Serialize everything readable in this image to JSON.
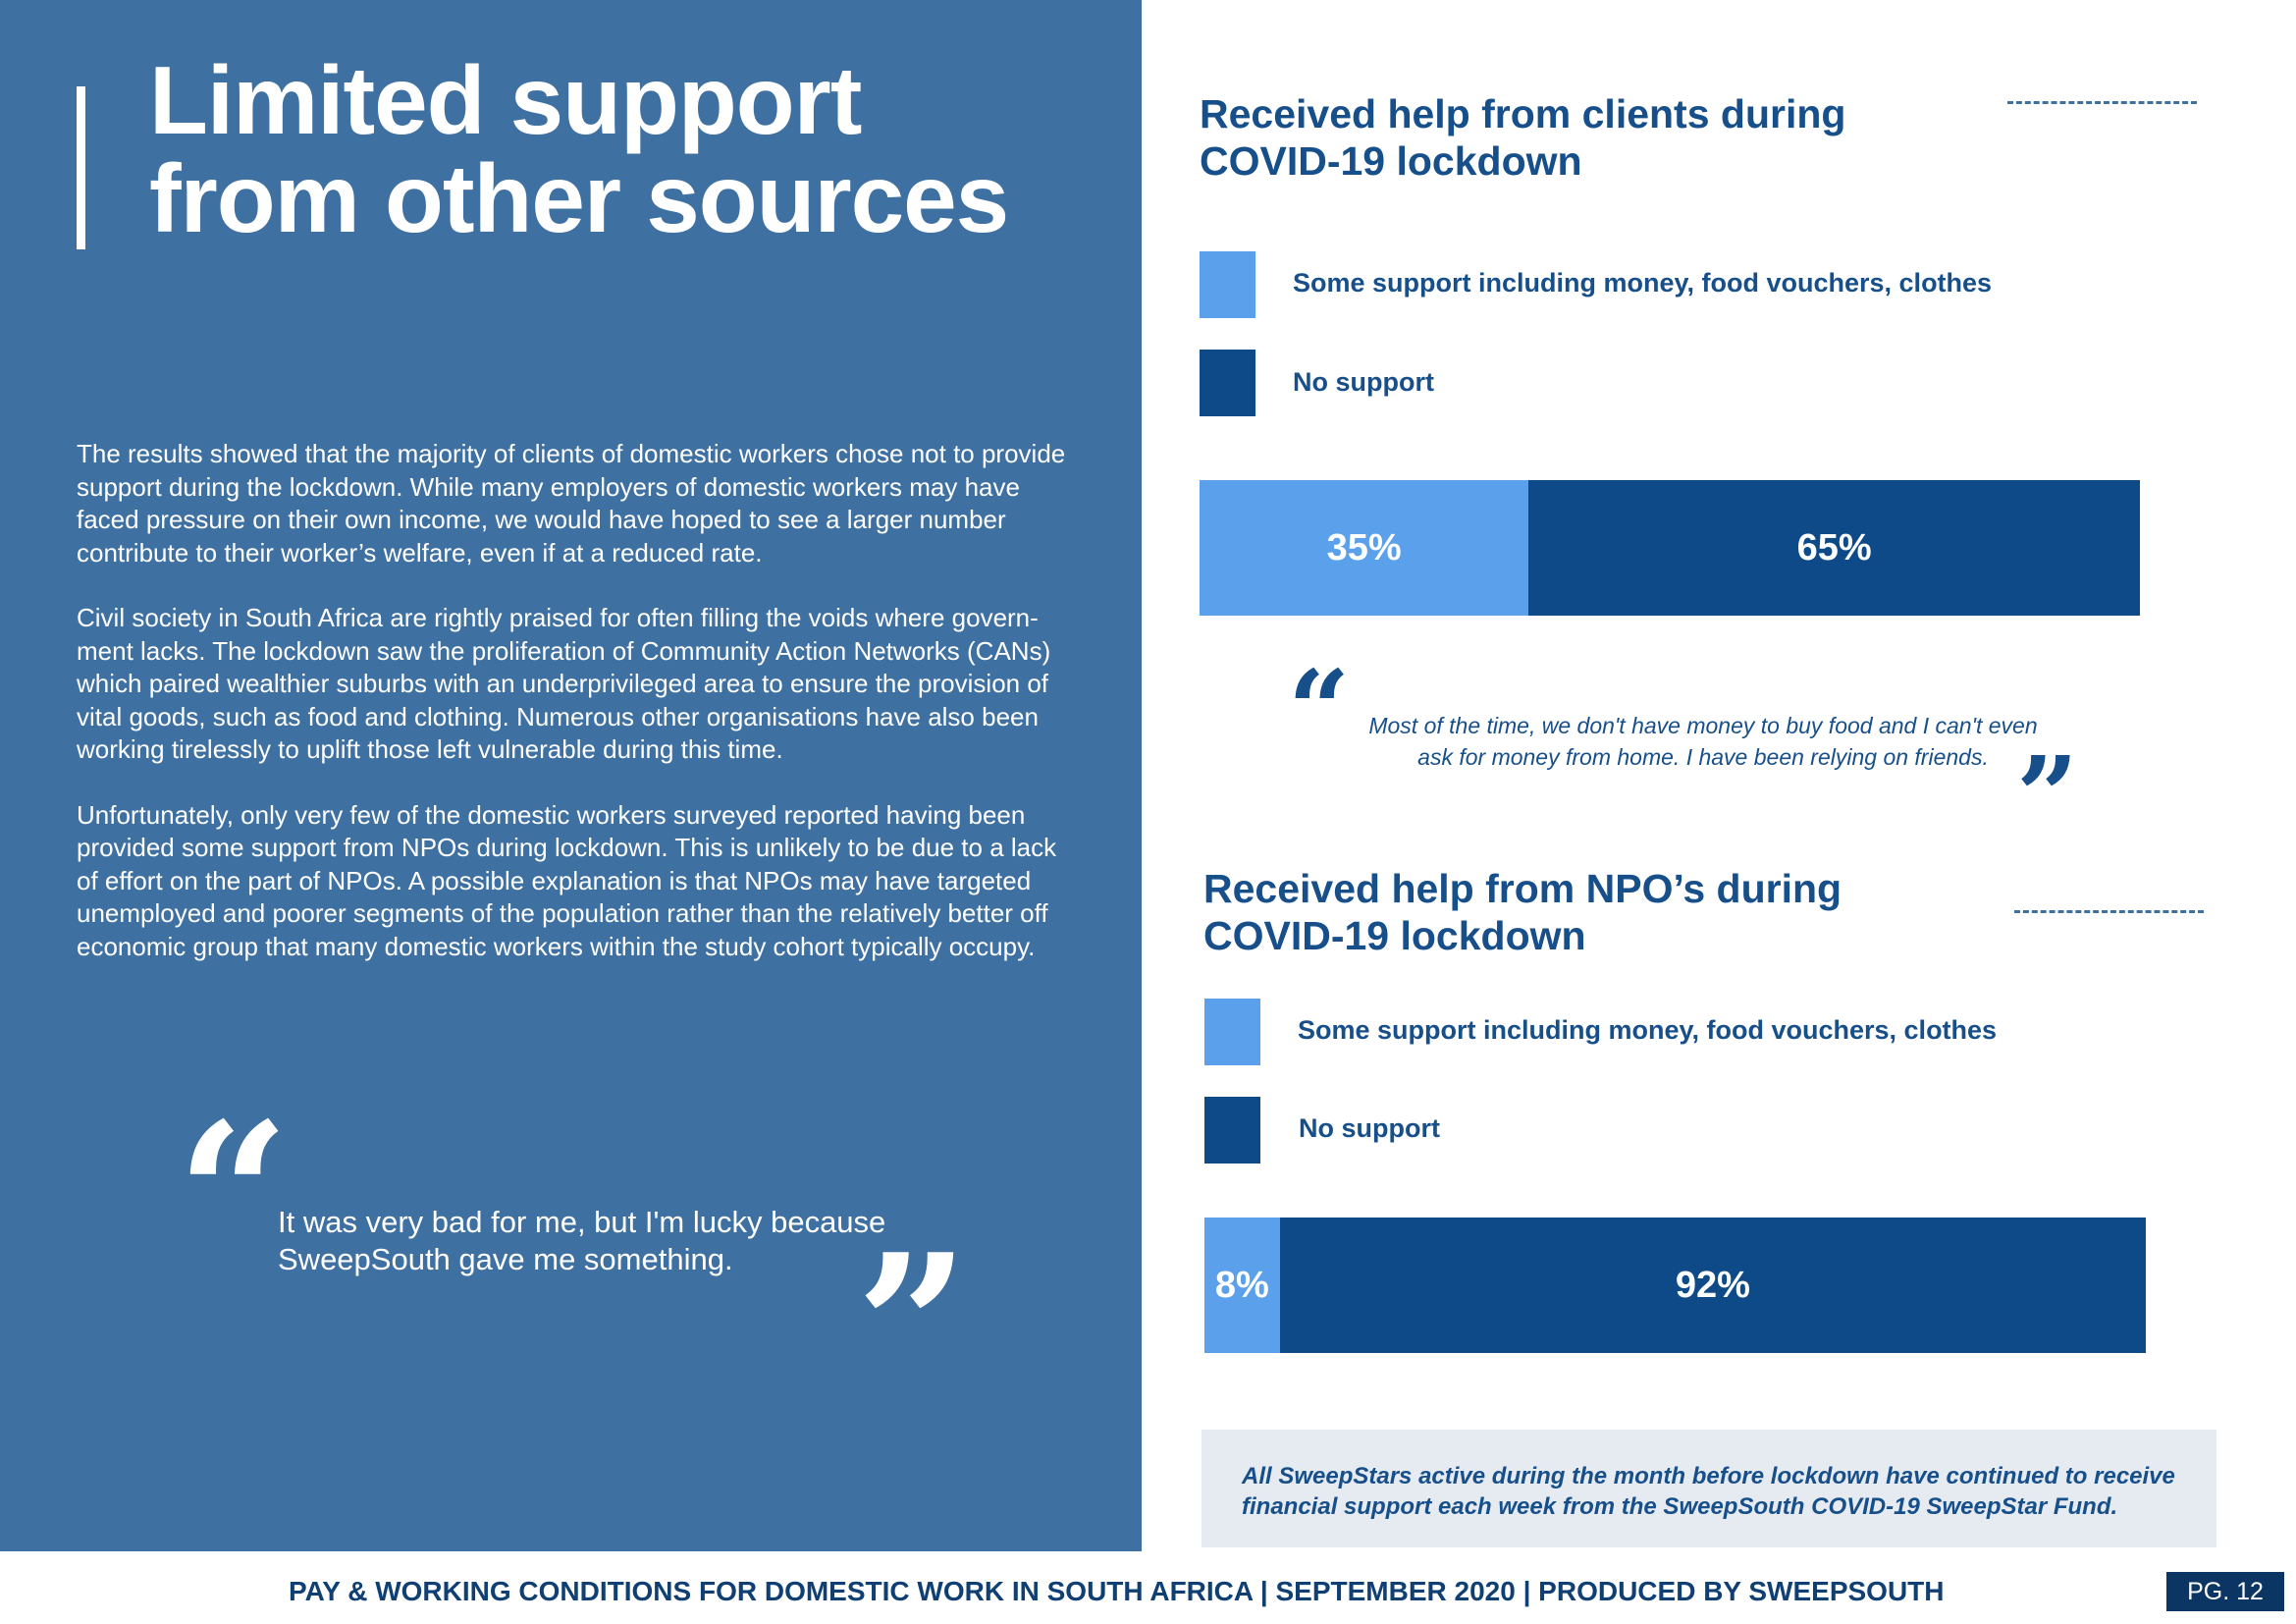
{
  "left": {
    "title": "Limited support from other sources",
    "paragraphs": [
      "The results showed that the majority of clients of domestic workers chose not to provide support during the lockdown. While many employers of domestic workers may have faced pressure on their own income, we would have hoped to see a larger number contribute to their worker’s welfare, even if at a reduced rate.",
      "Civil society in South Africa are rightly praised for often filling the voids where govern-ment lacks. The lockdown saw the proliferation of Community Action Networks (CANs) which paired wealthier suburbs with an underprivileged area to ensure the provision of vital goods, such as food and clothing. Numerous other organisations have also been working tirelessly to uplift those left vulnerable during this time.",
      "Unfortunately, only very few of the domestic workers surveyed reported having been provided some support from NPOs during lockdown.  This is unlikely to be due to a lack of effort on the part of NPOs. A possible explanation is that NPOs may have targeted unemployed and poorer segments of the population rather than the relatively better off economic group that many domestic workers within the study cohort typically occupy."
    ],
    "quote": "It was very bad for me, but I'm lucky because SweepSouth gave me something."
  },
  "chart_data": [
    {
      "type": "bar",
      "orientation": "horizontal-stacked",
      "title": "Received help from clients during COVID-19 lockdown",
      "series": [
        {
          "name": "Some support including money, food vouchers, clothes",
          "values": [
            35
          ],
          "label": "35%",
          "color": "#5aa0ea"
        },
        {
          "name": "No support",
          "values": [
            65
          ],
          "label": "65%",
          "color": "#0e4a87"
        }
      ]
    },
    {
      "type": "bar",
      "orientation": "horizontal-stacked",
      "title": "Received help from NPO’s during COVID-19 lockdown",
      "series": [
        {
          "name": "Some support including money, food vouchers, clothes",
          "values": [
            8
          ],
          "label": "8%",
          "color": "#5aa0ea"
        },
        {
          "name": "No support",
          "values": [
            92
          ],
          "label": "92%",
          "color": "#0e4a87"
        }
      ]
    }
  ],
  "right": {
    "quote": "Most of the time, we don't have money to buy food and I can't even ask for money from home. I have been relying on friends.",
    "note": "All SweepStars active during the month before lockdown have continued to receive financial support each week from the SweepSouth COVID-19 SweepStar Fund."
  },
  "footer": {
    "text": "PAY & WORKING CONDITIONS FOR DOMESTIC WORK IN SOUTH AFRICA  |  SEPTEMBER 2020 | PRODUCED BY SWEEPSOUTH",
    "page": "PG. 12"
  },
  "quote_glyphs": {
    "open": "“",
    "close": "”"
  }
}
